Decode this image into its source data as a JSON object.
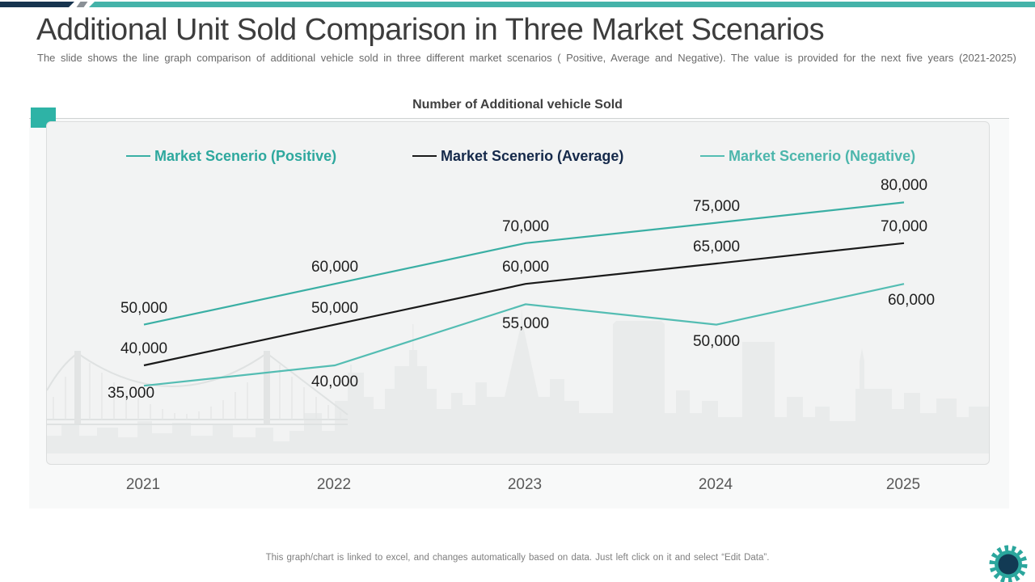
{
  "slide": {
    "title": "Additional Unit Sold Comparison in Three Market Scenarios",
    "subtitle": "The slide shows the line graph comparison of additional vehicle sold in three different market scenarios ( Positive, Average and Negative). The value is provided for the next five years (2021-2025)",
    "footer_note": "This graph/chart is linked to excel, and changes automatically based on data. Just left click on it and select “Edit Data”."
  },
  "chart_data": {
    "type": "line",
    "title": "Number of Additional vehicle Sold",
    "categories": [
      "2021",
      "2022",
      "2023",
      "2024",
      "2025"
    ],
    "series": [
      {
        "name": "Market Scenerio (Positive)",
        "values": [
          50000,
          60000,
          70000,
          75000,
          80000
        ],
        "line_color": "#3aafa4",
        "text_color": "#2ea89e"
      },
      {
        "name": "Market Scenerio (Average)",
        "values": [
          40000,
          50000,
          60000,
          65000,
          70000
        ],
        "line_color": "#1a1a1a",
        "text_color": "#15294a"
      },
      {
        "name": "Market Scenerio (Negative)",
        "values": [
          35000,
          40000,
          55000,
          50000,
          60000
        ],
        "line_color": "#54bdb3",
        "text_color": "#4cb6ac"
      }
    ],
    "data_labels": true,
    "axes_hidden": true,
    "legend_position": "top",
    "value_format": "#,##0"
  },
  "colors": {
    "accent_teal": "#2eb3a6",
    "navy": "#17344f",
    "card_background": "#f2f3f3",
    "skyline_silhouette": "#e9ebeb"
  },
  "icons": {
    "gear_icon": "gear"
  }
}
